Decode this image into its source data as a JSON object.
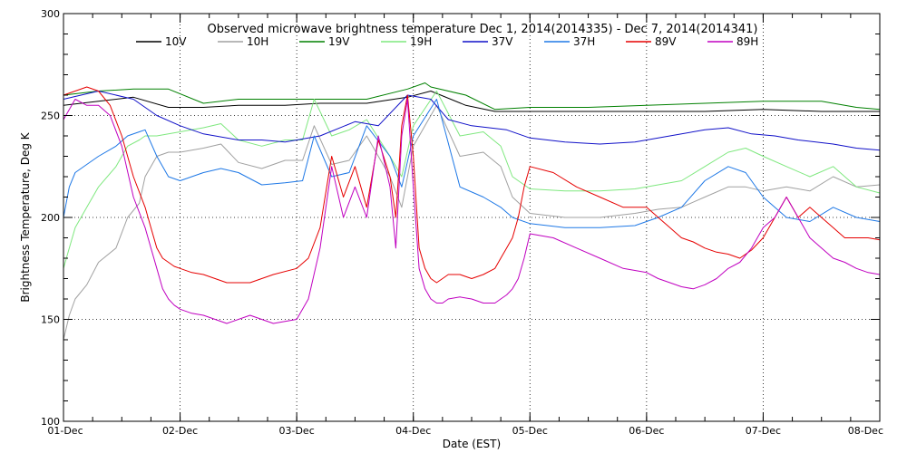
{
  "colors": {
    "10V": "#000000",
    "10H": "#a0a0a0",
    "19V": "#008000",
    "19H": "#7fe87f",
    "37V": "#1010c8",
    "37H": "#1e78e6",
    "89V": "#e60000",
    "89H": "#c000c0"
  },
  "chart_data": {
    "type": "line",
    "title": "Observed microwave brightness temperature Dec  1, 2014(2014335) - Dec  7, 2014(2014341)",
    "xlabel": "Date (EST)",
    "ylabel": "Brightness Temperature, Deg K",
    "ylim": [
      100,
      300
    ],
    "xlim": [
      0,
      7
    ],
    "y_ticks": [
      100,
      150,
      200,
      250,
      300
    ],
    "x_tick_labels": [
      "01-Dec",
      "02-Dec",
      "03-Dec",
      "04-Dec",
      "05-Dec",
      "06-Dec",
      "07-Dec",
      "08-Dec"
    ],
    "grid": true,
    "legend_position": "top",
    "series": [
      {
        "name": "10V",
        "x": [
          0,
          0.3,
          0.6,
          0.9,
          1.2,
          1.5,
          1.9,
          2.2,
          2.6,
          2.95,
          3.15,
          3.45,
          3.7,
          4.0,
          4.5,
          5.0,
          5.5,
          6.0,
          6.5,
          6.8,
          7.0
        ],
        "y": [
          255,
          257,
          259,
          254,
          254,
          255,
          255,
          256,
          256,
          259,
          262,
          255,
          252,
          252,
          252,
          252,
          252,
          253,
          252,
          252,
          252
        ]
      },
      {
        "name": "10H",
        "x": [
          0,
          0.05,
          0.1,
          0.2,
          0.3,
          0.45,
          0.55,
          0.65,
          0.7,
          0.8,
          0.9,
          1.0,
          1.1,
          1.2,
          1.35,
          1.5,
          1.7,
          1.9,
          2.05,
          2.15,
          2.3,
          2.45,
          2.6,
          2.8,
          2.9,
          3.0,
          3.2,
          3.4,
          3.6,
          3.75,
          3.85,
          4.0,
          4.3,
          4.6,
          4.9,
          5.1,
          5.3,
          5.5,
          5.7,
          5.85,
          6.0,
          6.2,
          6.4,
          6.6,
          6.8,
          7.0
        ],
        "y": [
          140,
          152,
          160,
          167,
          178,
          185,
          200,
          207,
          220,
          230,
          232,
          232,
          233,
          234,
          236,
          227,
          224,
          228,
          228,
          245,
          226,
          228,
          240,
          220,
          205,
          235,
          255,
          230,
          232,
          225,
          210,
          202,
          200,
          200,
          202,
          204,
          205,
          210,
          215,
          215,
          213,
          215,
          213,
          220,
          215,
          216
        ]
      },
      {
        "name": "19V",
        "x": [
          0,
          0.3,
          0.6,
          0.9,
          1.2,
          1.5,
          1.9,
          2.2,
          2.6,
          2.95,
          3.1,
          3.15,
          3.45,
          3.7,
          4.0,
          4.5,
          5.0,
          5.5,
          6.0,
          6.5,
          6.8,
          7.0
        ],
        "y": [
          260,
          262,
          263,
          263,
          256,
          258,
          258,
          258,
          258,
          263,
          266,
          264,
          260,
          253,
          254,
          254,
          255,
          256,
          257,
          257,
          254,
          253
        ]
      },
      {
        "name": "19H",
        "x": [
          0,
          0.05,
          0.1,
          0.2,
          0.3,
          0.45,
          0.55,
          0.65,
          0.7,
          0.8,
          0.9,
          1.0,
          1.1,
          1.2,
          1.35,
          1.5,
          1.7,
          1.9,
          2.05,
          2.15,
          2.3,
          2.45,
          2.6,
          2.8,
          2.9,
          3.0,
          3.2,
          3.4,
          3.6,
          3.75,
          3.85,
          4.0,
          4.3,
          4.6,
          4.9,
          5.1,
          5.3,
          5.5,
          5.7,
          5.85,
          6.0,
          6.2,
          6.4,
          6.6,
          6.8,
          7.0
        ],
        "y": [
          175,
          185,
          195,
          205,
          215,
          225,
          235,
          238,
          240,
          240,
          241,
          242,
          243,
          244,
          246,
          238,
          235,
          238,
          238,
          258,
          240,
          243,
          248,
          230,
          220,
          245,
          262,
          240,
          242,
          235,
          220,
          214,
          213,
          213,
          214,
          216,
          218,
          225,
          232,
          234,
          230,
          225,
          220,
          225,
          215,
          212
        ]
      },
      {
        "name": "37V",
        "x": [
          0,
          0.3,
          0.6,
          0.8,
          1.0,
          1.2,
          1.5,
          1.7,
          1.9,
          2.2,
          2.5,
          2.7,
          2.95,
          3.15,
          3.3,
          3.5,
          3.8,
          4.0,
          4.3,
          4.6,
          4.9,
          5.2,
          5.5,
          5.7,
          5.9,
          6.1,
          6.3,
          6.6,
          6.8,
          7.0
        ],
        "y": [
          258,
          262,
          258,
          250,
          245,
          241,
          238,
          238,
          237,
          240,
          247,
          245,
          260,
          258,
          248,
          245,
          243,
          239,
          237,
          236,
          237,
          240,
          243,
          244,
          241,
          240,
          238,
          236,
          234,
          233
        ]
      },
      {
        "name": "37H",
        "x": [
          0,
          0.05,
          0.1,
          0.2,
          0.3,
          0.45,
          0.55,
          0.65,
          0.7,
          0.8,
          0.9,
          1.0,
          1.1,
          1.2,
          1.35,
          1.5,
          1.7,
          1.9,
          2.05,
          2.15,
          2.3,
          2.45,
          2.6,
          2.8,
          2.9,
          3.0,
          3.2,
          3.4,
          3.6,
          3.75,
          3.85,
          4.0,
          4.3,
          4.6,
          4.9,
          5.1,
          5.3,
          5.5,
          5.7,
          5.85,
          6.0,
          6.2,
          6.4,
          6.6,
          6.8,
          7.0
        ],
        "y": [
          200,
          215,
          222,
          226,
          230,
          235,
          240,
          242,
          243,
          230,
          220,
          218,
          220,
          222,
          224,
          222,
          216,
          217,
          218,
          240,
          220,
          222,
          245,
          230,
          215,
          240,
          258,
          215,
          210,
          205,
          200,
          197,
          195,
          195,
          196,
          200,
          205,
          218,
          225,
          222,
          210,
          200,
          198,
          205,
          200,
          198
        ]
      },
      {
        "name": "89V",
        "x": [
          0,
          0.1,
          0.2,
          0.3,
          0.4,
          0.5,
          0.6,
          0.7,
          0.75,
          0.8,
          0.85,
          0.9,
          0.95,
          1.0,
          1.1,
          1.2,
          1.4,
          1.6,
          1.8,
          2.0,
          2.1,
          2.2,
          2.3,
          2.4,
          2.5,
          2.6,
          2.7,
          2.8,
          2.85,
          2.9,
          2.95,
          3.0,
          3.05,
          3.1,
          3.15,
          3.2,
          3.25,
          3.3,
          3.4,
          3.5,
          3.6,
          3.7,
          3.75,
          3.8,
          3.85,
          3.9,
          3.95,
          4.0,
          4.2,
          4.4,
          4.6,
          4.8,
          5.0,
          5.1,
          5.2,
          5.3,
          5.4,
          5.5,
          5.6,
          5.7,
          5.8,
          5.9,
          6.0,
          6.1,
          6.2,
          6.3,
          6.4,
          6.5,
          6.6,
          6.7,
          6.8,
          6.9,
          7.0
        ],
        "y": [
          260,
          262,
          264,
          262,
          255,
          240,
          220,
          205,
          195,
          185,
          180,
          178,
          176,
          175,
          173,
          172,
          168,
          168,
          172,
          175,
          180,
          195,
          230,
          210,
          225,
          205,
          238,
          220,
          200,
          245,
          260,
          230,
          185,
          175,
          170,
          168,
          170,
          172,
          172,
          170,
          172,
          175,
          180,
          185,
          190,
          200,
          215,
          225,
          222,
          215,
          210,
          205,
          205,
          200,
          195,
          190,
          188,
          185,
          183,
          182,
          180,
          184,
          190,
          200,
          210,
          200,
          205,
          200,
          195,
          190,
          190,
          190,
          189
        ]
      },
      {
        "name": "89H",
        "x": [
          0,
          0.1,
          0.2,
          0.3,
          0.4,
          0.5,
          0.6,
          0.7,
          0.75,
          0.8,
          0.85,
          0.9,
          0.95,
          1.0,
          1.1,
          1.2,
          1.4,
          1.6,
          1.8,
          2.0,
          2.1,
          2.2,
          2.3,
          2.4,
          2.5,
          2.6,
          2.7,
          2.8,
          2.85,
          2.9,
          2.95,
          3.0,
          3.05,
          3.1,
          3.15,
          3.2,
          3.25,
          3.3,
          3.4,
          3.5,
          3.6,
          3.7,
          3.75,
          3.8,
          3.85,
          3.9,
          3.95,
          4.0,
          4.2,
          4.4,
          4.6,
          4.8,
          5.0,
          5.1,
          5.2,
          5.3,
          5.4,
          5.5,
          5.6,
          5.7,
          5.8,
          5.9,
          6.0,
          6.1,
          6.2,
          6.3,
          6.4,
          6.5,
          6.6,
          6.7,
          6.8,
          6.9,
          7.0
        ],
        "y": [
          248,
          258,
          255,
          255,
          250,
          235,
          210,
          195,
          185,
          175,
          165,
          160,
          157,
          155,
          153,
          152,
          148,
          152,
          148,
          150,
          160,
          185,
          225,
          200,
          215,
          200,
          240,
          215,
          185,
          240,
          258,
          215,
          175,
          165,
          160,
          158,
          158,
          160,
          161,
          160,
          158,
          158,
          160,
          162,
          165,
          170,
          180,
          192,
          190,
          185,
          180,
          175,
          173,
          170,
          168,
          166,
          165,
          167,
          170,
          175,
          178,
          185,
          195,
          200,
          210,
          200,
          190,
          185,
          180,
          178,
          175,
          173,
          172
        ]
      }
    ]
  }
}
